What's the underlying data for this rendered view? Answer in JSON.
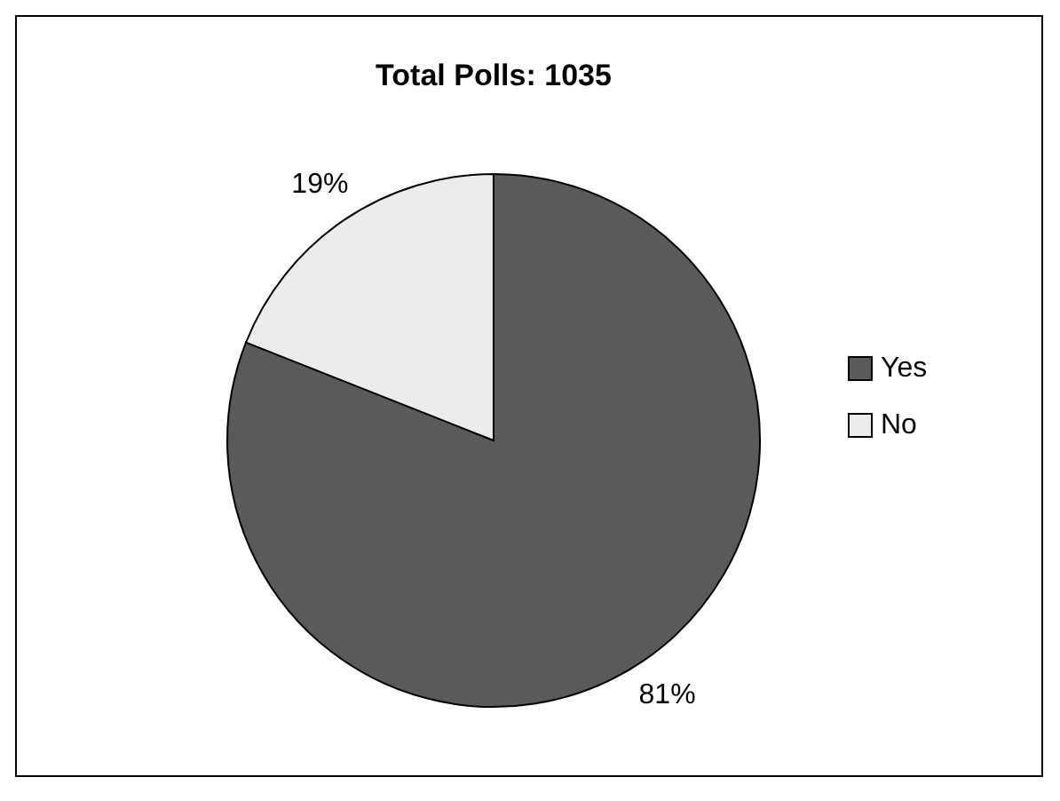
{
  "chart_data": {
    "type": "pie",
    "title": "Total Polls: 1035",
    "categories": [
      "Yes",
      "No"
    ],
    "values": [
      81,
      19
    ],
    "colors": [
      "#5a5a5a",
      "#ececec"
    ],
    "value_labels": [
      "81%",
      "19%"
    ],
    "legend": "right"
  }
}
